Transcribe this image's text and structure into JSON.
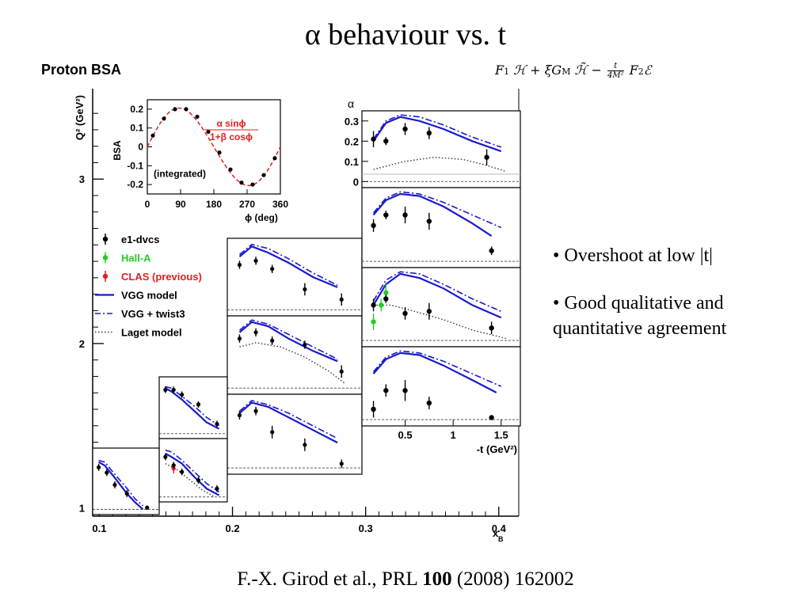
{
  "slide": {
    "title": "α behaviour vs. t",
    "panel_label": "Proton BSA",
    "formula": {
      "t1": "F",
      "t1sub": "1",
      "t2": "ℋ + ξG",
      "t2sub": "M",
      "t3": "ℋ̃ −",
      "frac_num": "t",
      "frac_den": "4M²",
      "t4": "F",
      "t4sub": "2",
      "t5": "ℰ"
    },
    "bullets": [
      "• Overshoot at low |t|",
      "• Good qualitative and quantitative agreement"
    ],
    "citation": {
      "pre": "F.-X. Girod et al., PRL ",
      "volume": "100",
      "post": " (2008) 162002"
    }
  },
  "chart_data": [
    {
      "type": "scatter",
      "name": "main-frame",
      "xlabel": "x",
      "xlabel_sub": "B",
      "ylabel": "Q² (GeV²)",
      "xlim": [
        0.095,
        0.415
      ],
      "ylim": [
        0.95,
        3.55
      ],
      "x_ticks": [
        0.1,
        0.2,
        0.3,
        0.4
      ],
      "x_tick_labels": [
        "0.1",
        "0.2",
        "0.3",
        "0.4"
      ],
      "y_ticks": [
        1,
        2,
        3
      ],
      "y_tick_labels": [
        "1",
        "2",
        "3"
      ]
    },
    {
      "type": "line",
      "name": "integrated-inset",
      "xlabel": "ϕ (deg)",
      "ylabel": "BSA",
      "xlim": [
        0,
        360
      ],
      "ylim": [
        -0.25,
        0.25
      ],
      "x_ticks": [
        0,
        90,
        180,
        270,
        360
      ],
      "x_tick_labels": [
        "0",
        "90",
        "180",
        "270",
        "360"
      ],
      "y_ticks": [
        -0.2,
        -0.1,
        0,
        0.1,
        0.2
      ],
      "y_tick_labels": [
        "-0.2",
        "-0.1",
        "0",
        "0.1",
        "0.2"
      ],
      "annotation": "(integrated)",
      "fit_label_num": "α sinϕ",
      "fit_label_den": "1+β cosϕ",
      "fit": {
        "alpha": 0.205,
        "beta": -0.08
      },
      "points": {
        "x": [
          15,
          45,
          75,
          105,
          135,
          165,
          195,
          225,
          255,
          285,
          315,
          345
        ],
        "y": [
          0.06,
          0.15,
          0.2,
          0.2,
          0.16,
          0.08,
          -0.03,
          -0.12,
          -0.19,
          -0.2,
          -0.15,
          -0.06
        ]
      }
    },
    {
      "type": "line",
      "name": "alpha-vs-t-column",
      "xlabel": "-t (GeV²)",
      "ylabel": "α",
      "xlim": [
        0.05,
        1.7
      ],
      "ylim": [
        -0.03,
        0.35
      ],
      "x_ticks": [
        0.5,
        1,
        1.5
      ],
      "x_tick_labels": [
        "0.5",
        "1",
        "1.5"
      ],
      "y_ticks": [
        0,
        0.1,
        0.2,
        0.3
      ],
      "y_tick_labels": [
        "0",
        "0.1",
        "0.2",
        "0.3"
      ],
      "panels": [
        {
          "data": {
            "x": [
              0.17,
              0.3,
              0.5,
              0.75,
              1.35
            ],
            "y": [
              0.21,
              0.2,
              0.26,
              0.24,
              0.12
            ],
            "err": [
              0.04,
              0.02,
              0.03,
              0.03,
              0.04
            ]
          },
          "vgg": {
            "x": [
              0.17,
              0.3,
              0.45,
              0.65,
              0.9,
              1.2,
              1.5
            ],
            "y": [
              0.2,
              0.29,
              0.32,
              0.3,
              0.26,
              0.2,
              0.15
            ]
          },
          "twist3": {
            "x": [
              0.17,
              0.3,
              0.45,
              0.65,
              0.9,
              1.2,
              1.5
            ],
            "y": [
              0.21,
              0.3,
              0.33,
              0.32,
              0.28,
              0.22,
              0.17
            ]
          },
          "laget": {
            "x": [
              0.17,
              0.5,
              0.8,
              1.1,
              1.35,
              1.55
            ],
            "y": [
              0.06,
              0.1,
              0.12,
              0.11,
              0.08,
              0.05
            ]
          },
          "axis_labels": true
        },
        {
          "data": {
            "x": [
              0.17,
              0.3,
              0.5,
              0.75,
              1.4
            ],
            "y": [
              0.17,
              0.22,
              0.22,
              0.19,
              0.05
            ],
            "err": [
              0.03,
              0.02,
              0.04,
              0.04,
              0.02
            ]
          },
          "vgg": {
            "x": [
              0.17,
              0.3,
              0.45,
              0.65,
              0.9,
              1.2,
              1.4
            ],
            "y": [
              0.22,
              0.29,
              0.32,
              0.31,
              0.26,
              0.18,
              0.12
            ]
          },
          "twist3": {
            "x": [
              0.17,
              0.3,
              0.45,
              0.65,
              0.9,
              1.2,
              1.5
            ],
            "y": [
              0.23,
              0.3,
              0.33,
              0.32,
              0.28,
              0.22,
              0.16
            ]
          }
        },
        {
          "data": {
            "x": [
              0.17,
              0.3,
              0.5,
              0.75,
              1.4
            ],
            "y": [
              0.17,
              0.2,
              0.13,
              0.14,
              0.06
            ],
            "err": [
              0.03,
              0.02,
              0.03,
              0.04,
              0.03
            ]
          },
          "green": {
            "x": [
              0.17,
              0.25,
              0.3
            ],
            "y": [
              0.09,
              0.17,
              0.23
            ],
            "err": [
              0.04,
              0.03,
              0.04
            ]
          },
          "vgg": {
            "x": [
              0.17,
              0.3,
              0.45,
              0.65,
              0.9,
              1.2,
              1.5
            ],
            "y": [
              0.17,
              0.27,
              0.32,
              0.3,
              0.25,
              0.17,
              0.11
            ]
          },
          "twist3": {
            "x": [
              0.17,
              0.3,
              0.45,
              0.65,
              0.9,
              1.2,
              1.5
            ],
            "y": [
              0.19,
              0.29,
              0.33,
              0.32,
              0.27,
              0.2,
              0.14
            ]
          },
          "laget": {
            "x": [
              0.17,
              0.35,
              0.6,
              0.9,
              1.2,
              1.55
            ],
            "y": [
              0.17,
              0.17,
              0.14,
              0.1,
              0.05,
              0.01
            ]
          }
        },
        {
          "data": {
            "x": [
              0.17,
              0.3,
              0.5,
              0.75,
              1.4
            ],
            "y": [
              0.05,
              0.14,
              0.14,
              0.08,
              0.01
            ],
            "err": [
              0.04,
              0.03,
              0.05,
              0.03,
              0.01
            ]
          },
          "vgg": {
            "x": [
              0.17,
              0.3,
              0.45,
              0.65,
              0.9,
              1.2,
              1.45
            ],
            "y": [
              0.22,
              0.29,
              0.32,
              0.31,
              0.26,
              0.19,
              0.13
            ]
          },
          "twist3": {
            "x": [
              0.17,
              0.3,
              0.45,
              0.65,
              0.9,
              1.2,
              1.5
            ],
            "y": [
              0.23,
              0.3,
              0.33,
              0.32,
              0.28,
              0.22,
              0.16
            ]
          },
          "axis_labels": true,
          "x_axis_labels": true
        }
      ]
    },
    {
      "type": "line",
      "name": "small-alpha-panels",
      "panels": [
        {
          "data": {
            "x": [
              0.2,
              0.4,
              0.6,
              1.0,
              1.45
            ],
            "y": [
              0.22,
              0.24,
              0.2,
              0.1,
              0.05
            ],
            "err": [
              0.02,
              0.02,
              0.02,
              0.03,
              0.03
            ]
          },
          "vgg": {
            "x": [
              0.2,
              0.35,
              0.55,
              0.8,
              1.1,
              1.4
            ],
            "y": [
              0.26,
              0.31,
              0.28,
              0.23,
              0.16,
              0.11
            ]
          },
          "twist3": {
            "x": [
              0.2,
              0.35,
              0.55,
              0.8,
              1.1,
              1.4
            ],
            "y": [
              0.27,
              0.32,
              0.3,
              0.25,
              0.18,
              0.12
            ]
          }
        },
        {
          "data": {
            "x": [
              0.2,
              0.4,
              0.6,
              1.0,
              1.45
            ],
            "y": [
              0.24,
              0.27,
              0.23,
              0.21,
              0.08
            ],
            "err": [
              0.02,
              0.02,
              0.02,
              0.02,
              0.03
            ]
          },
          "vgg": {
            "x": [
              0.2,
              0.35,
              0.55,
              0.8,
              1.1,
              1.4
            ],
            "y": [
              0.27,
              0.32,
              0.3,
              0.24,
              0.18,
              0.13
            ]
          },
          "twist3": {
            "x": [
              0.2,
              0.35,
              0.55,
              0.8,
              1.1,
              1.4
            ],
            "y": [
              0.28,
              0.33,
              0.31,
              0.26,
              0.2,
              0.14
            ]
          },
          "laget": {
            "x": [
              0.2,
              0.4,
              0.7,
              1.0,
              1.3,
              1.5
            ],
            "y": [
              0.2,
              0.22,
              0.2,
              0.15,
              0.08,
              0.02
            ]
          }
        },
        {
          "data": {
            "x": [
              0.2,
              0.4,
              0.6,
              1.0,
              1.45
            ],
            "y": [
              0.25,
              0.27,
              0.17,
              0.11,
              0.02
            ],
            "err": [
              0.02,
              0.02,
              0.03,
              0.03,
              0.02
            ]
          },
          "vgg": {
            "x": [
              0.2,
              0.35,
              0.55,
              0.8,
              1.1,
              1.4
            ],
            "y": [
              0.26,
              0.31,
              0.29,
              0.24,
              0.18,
              0.12
            ]
          },
          "twist3": {
            "x": [
              0.2,
              0.35,
              0.55,
              0.8,
              1.1,
              1.4
            ],
            "y": [
              0.27,
              0.32,
              0.3,
              0.26,
              0.2,
              0.14
            ]
          }
        },
        {
          "data": {
            "x": [
              0.2,
              0.4,
              0.6,
              1.0,
              1.45
            ],
            "y": [
              0.27,
              0.27,
              0.24,
              0.18,
              0.06
            ],
            "err": [
              0.02,
              0.02,
              0.02,
              0.02,
              0.02
            ]
          },
          "vgg": {
            "x": [
              0.2,
              0.35,
              0.6,
              0.9,
              1.2,
              1.5
            ],
            "y": [
              0.28,
              0.26,
              0.21,
              0.14,
              0.07,
              0.03
            ]
          },
          "twist3": {
            "x": [
              0.2,
              0.35,
              0.6,
              0.9,
              1.2,
              1.5
            ],
            "y": [
              0.29,
              0.28,
              0.23,
              0.17,
              0.1,
              0.05
            ]
          }
        },
        {
          "data": {
            "x": [
              0.2,
              0.4,
              0.6,
              1.0,
              1.45
            ],
            "y": [
              0.24,
              0.19,
              0.15,
              0.1,
              0.05
            ],
            "err": [
              0.02,
              0.02,
              0.02,
              0.02,
              0.02
            ]
          },
          "red": {
            "x": [
              0.4
            ],
            "y": [
              0.17
            ],
            "err": [
              0.03
            ]
          },
          "vgg": {
            "x": [
              0.2,
              0.35,
              0.6,
              0.9,
              1.2,
              1.5
            ],
            "y": [
              0.26,
              0.24,
              0.2,
              0.12,
              0.05,
              0.01
            ]
          },
          "twist3": {
            "x": [
              0.2,
              0.35,
              0.6,
              0.9,
              1.2,
              1.5
            ],
            "y": [
              0.28,
              0.27,
              0.22,
              0.15,
              0.08,
              0.03
            ]
          },
          "laget": {
            "x": [
              0.2,
              0.5,
              0.8,
              1.1,
              1.4
            ],
            "y": [
              0.2,
              0.16,
              0.1,
              0.04,
              0.0
            ]
          }
        },
        {
          "data": {
            "x": [
              0.2,
              0.4,
              0.6,
              0.9,
              1.4
            ],
            "y": [
              0.24,
              0.21,
              0.14,
              0.09,
              0.01
            ],
            "err": [
              0.02,
              0.02,
              0.02,
              0.02,
              0.01
            ]
          },
          "vgg": {
            "x": [
              0.2,
              0.35,
              0.6,
              0.9,
              1.1,
              1.3
            ],
            "y": [
              0.27,
              0.25,
              0.18,
              0.09,
              0.04,
              0.0
            ]
          },
          "twist3": {
            "x": [
              0.2,
              0.35,
              0.6,
              0.9,
              1.1,
              1.3
            ],
            "y": [
              0.28,
              0.27,
              0.2,
              0.12,
              0.06,
              0.02
            ]
          }
        }
      ]
    },
    {
      "type": "legend",
      "name": "legend",
      "entries": [
        {
          "label": "e1-dvcs",
          "marker": "point",
          "color": "#000000"
        },
        {
          "label": "Hall-A",
          "marker": "point",
          "color": "#22cc22"
        },
        {
          "label": "CLAS (previous)",
          "marker": "point",
          "color": "#e02020"
        },
        {
          "label": "VGG model",
          "marker": "solid",
          "color": "#1a1acc"
        },
        {
          "label": "VGG + twist3",
          "marker": "dashdot",
          "color": "#1a1acc"
        },
        {
          "label": "Laget model",
          "marker": "dotted",
          "color": "#333333"
        }
      ]
    }
  ],
  "colors": {
    "vgg": "#1a1acc",
    "twist3": "#1a1acc",
    "laget": "#333333",
    "data": "#000000",
    "fit": "#e02020",
    "halla": "#22cc22",
    "clas": "#e02020"
  }
}
